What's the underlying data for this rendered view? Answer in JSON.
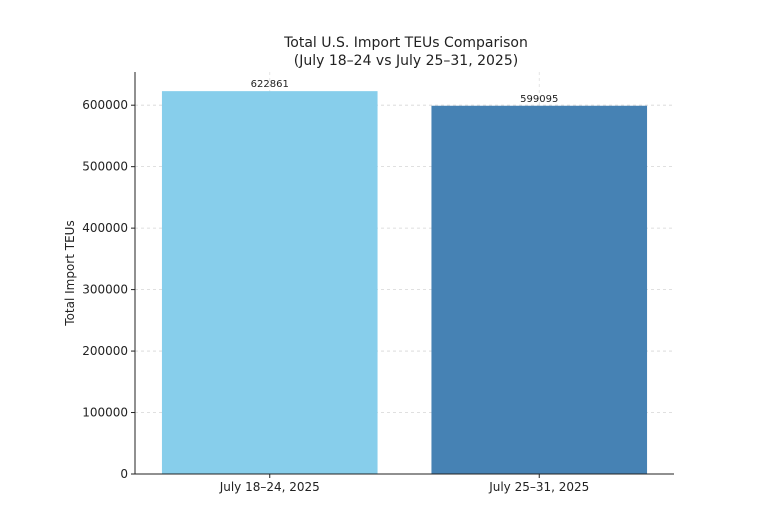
{
  "chart_data": {
    "type": "bar",
    "title_line1": "Total U.S. Import TEUs Comparison",
    "title_line2": "(July 18–24 vs July 25–31, 2025)",
    "xlabel": "",
    "ylabel": "Total Import TEUs",
    "categories": [
      "July 18–24, 2025",
      "July 25–31, 2025"
    ],
    "values": [
      622861,
      599095
    ],
    "data_labels": [
      "622861",
      "599095"
    ],
    "colors": [
      "#87ceeb",
      "#4682b4"
    ],
    "ylim": [
      0,
      654004
    ],
    "yticks": [
      0,
      100000,
      200000,
      300000,
      400000,
      500000,
      600000
    ],
    "ytick_labels": [
      "0",
      "100000",
      "200000",
      "300000",
      "400000",
      "500000",
      "600000"
    ],
    "grid": true
  }
}
